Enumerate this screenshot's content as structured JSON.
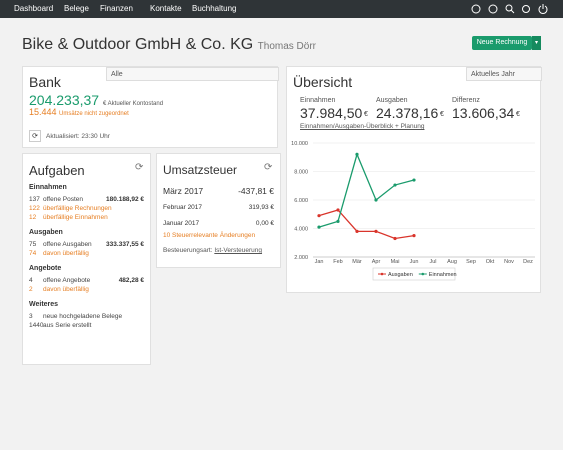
{
  "nav": {
    "items": [
      "Dashboard",
      "Belege",
      "Finanzen",
      "Kontakte",
      "Buchhaltung"
    ]
  },
  "header": {
    "company": "Bike & Outdoor GmbH & Co. KG",
    "user": "Thomas Dörr",
    "button": "Neue Rechnung"
  },
  "bank": {
    "title": "Bank",
    "select": "Alle",
    "balance": "204.233,37",
    "currency": "€",
    "balance_label": "Aktueller Kontostand",
    "unassigned": "15.444",
    "unassigned_label": "Umsätze nicht zugeordnet",
    "updated": "Aktualisiert: 23:30 Uhr"
  },
  "tasks": {
    "title": "Aufgaben",
    "groups": [
      {
        "title": "Einnahmen",
        "rows": [
          {
            "count": "137",
            "label": "offene Posten",
            "amount": "180.188,92 €"
          },
          {
            "count": "122",
            "label": "überfällige Rechnungen",
            "color": "#e67e22"
          },
          {
            "count": "12",
            "label": "überfällige Einnahmen",
            "color": "#e67e22"
          }
        ]
      },
      {
        "title": "Ausgaben",
        "rows": [
          {
            "count": "75",
            "label": "offene Ausgaben",
            "amount": "333.337,55 €"
          },
          {
            "count": "74",
            "label": "davon überfällig",
            "color": "#e67e22"
          }
        ]
      },
      {
        "title": "Angebote",
        "rows": [
          {
            "count": "4",
            "label": "offene Angebote",
            "amount": "482,28 €"
          },
          {
            "count": "2",
            "label": "davon überfällig",
            "color": "#e67e22"
          }
        ]
      },
      {
        "title": "Weiteres",
        "rows": [
          {
            "count": "3",
            "label": "neue hochgeladene Belege"
          },
          {
            "count": "1440",
            "label": "aus Serie erstellt"
          }
        ]
      }
    ]
  },
  "tax": {
    "title": "Umsatzsteuer",
    "rows": [
      {
        "label": "März 2017",
        "amount": "-437,81 €"
      },
      {
        "label": "Februar 2017",
        "amount": "319,93 €"
      },
      {
        "label": "Januar 2017",
        "amount": "0,00 €"
      }
    ],
    "link": "10 Steuerrelevante Änderungen",
    "basis_label": "Besteuerungsart:",
    "basis": "Ist-Versteuerung"
  },
  "overview": {
    "title": "Übersicht",
    "select": "Aktuelles Jahr",
    "kpis": [
      {
        "label": "Einnahmen",
        "value": "37.984,50",
        "currency": "€"
      },
      {
        "label": "Ausgaben",
        "value": "24.378,16",
        "currency": "€"
      },
      {
        "label": "Differenz",
        "value": "13.606,34",
        "currency": "€"
      }
    ],
    "link": "Einnahmen/Ausgaben-Überblick + Planung",
    "chart": {
      "type": "line",
      "categories": [
        "Jan",
        "Feb",
        "Mär",
        "Apr",
        "Mai",
        "Jun",
        "Jul",
        "Aug",
        "Sep",
        "Okt",
        "Nov",
        "Dez"
      ],
      "series": [
        {
          "name": "Ausgaben",
          "color": "#d9342b",
          "values": [
            4900,
            5300,
            3800,
            3800,
            3300,
            3500,
            null,
            null,
            null,
            null,
            null,
            null
          ]
        },
        {
          "name": "Einnahmen",
          "color": "#1a9b6c",
          "values": [
            4100,
            4500,
            9200,
            6000,
            7050,
            7400,
            null,
            null,
            null,
            null,
            null,
            null
          ]
        }
      ],
      "ylim": [
        2000,
        10000
      ],
      "yticks": [
        {
          "value": 2000,
          "label": "2.000"
        },
        {
          "value": 4000,
          "label": "4.000"
        },
        {
          "value": 6000,
          "label": "6.000"
        },
        {
          "value": 8000,
          "label": "8.000"
        },
        {
          "value": 10000,
          "label": "10.000"
        }
      ],
      "grid": true
    }
  }
}
